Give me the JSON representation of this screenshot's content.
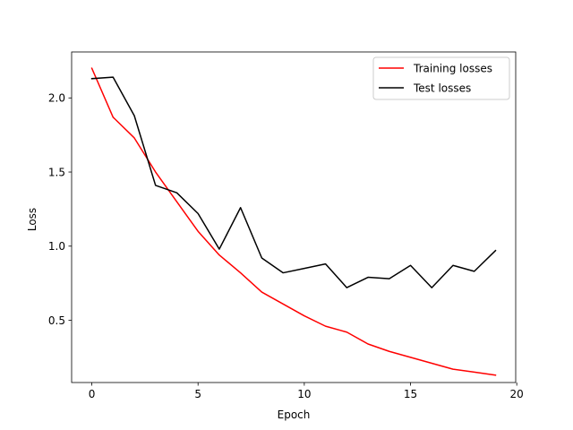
{
  "chart_data": {
    "type": "line",
    "title": "",
    "xlabel": "Epoch",
    "ylabel": "Loss",
    "xlim": [
      -0.95,
      19.95
    ],
    "ylim": [
      0.08,
      2.31
    ],
    "xticks": [
      0,
      5,
      10,
      15,
      20
    ],
    "yticks": [
      0.5,
      1.0,
      1.5,
      2.0
    ],
    "xtick_labels": [
      "0",
      "5",
      "10",
      "15",
      "20"
    ],
    "ytick_labels": [
      "0.5",
      "1.0",
      "1.5",
      "2.0"
    ],
    "grid": false,
    "legend_position": "top-right",
    "x": [
      0,
      1,
      2,
      3,
      4,
      5,
      6,
      7,
      8,
      9,
      10,
      11,
      12,
      13,
      14,
      15,
      16,
      17,
      18,
      19
    ],
    "series": [
      {
        "name": "Training losses",
        "color": "#ff0000",
        "values": [
          2.2,
          1.87,
          1.73,
          1.5,
          1.3,
          1.1,
          0.94,
          0.82,
          0.69,
          0.61,
          0.53,
          0.46,
          0.42,
          0.34,
          0.29,
          0.25,
          0.21,
          0.17,
          0.15,
          0.13
        ]
      },
      {
        "name": "Test losses",
        "color": "#000000",
        "values": [
          2.13,
          2.14,
          1.88,
          1.41,
          1.36,
          1.22,
          0.98,
          1.26,
          0.92,
          0.82,
          0.85,
          0.88,
          0.72,
          0.79,
          0.78,
          0.87,
          0.72,
          0.87,
          0.83,
          0.97
        ]
      }
    ]
  }
}
